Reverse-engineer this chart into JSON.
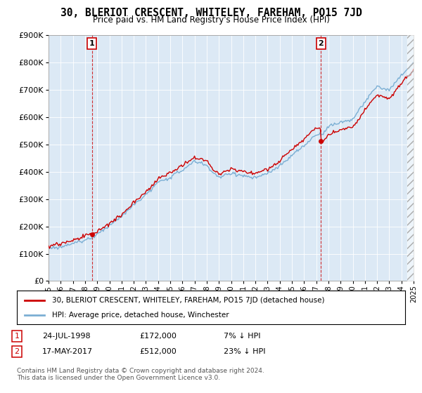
{
  "title": "30, BLERIOT CRESCENT, WHITELEY, FAREHAM, PO15 7JD",
  "subtitle": "Price paid vs. HM Land Registry's House Price Index (HPI)",
  "legend_line1": "30, BLERIOT CRESCENT, WHITELEY, FAREHAM, PO15 7JD (detached house)",
  "legend_line2": "HPI: Average price, detached house, Winchester",
  "annotation1_label": "1",
  "annotation1_date": "24-JUL-1998",
  "annotation1_price": "£172,000",
  "annotation1_hpi": "7% ↓ HPI",
  "annotation2_label": "2",
  "annotation2_date": "17-MAY-2017",
  "annotation2_price": "£512,000",
  "annotation2_hpi": "23% ↓ HPI",
  "footer": "Contains HM Land Registry data © Crown copyright and database right 2024.\nThis data is licensed under the Open Government Licence v3.0.",
  "sale_color": "#cc0000",
  "hpi_color": "#7bafd4",
  "chart_bg": "#dce9f5",
  "background_color": "#ffffff",
  "grid_color": "#ffffff",
  "sale1_x": 1998.57,
  "sale1_y": 172000,
  "sale2_x": 2017.38,
  "sale2_y": 512000,
  "xmin": 1995,
  "xmax": 2025,
  "ylim": [
    0,
    900000
  ],
  "yticks": [
    0,
    100000,
    200000,
    300000,
    400000,
    500000,
    600000,
    700000,
    800000,
    900000
  ]
}
